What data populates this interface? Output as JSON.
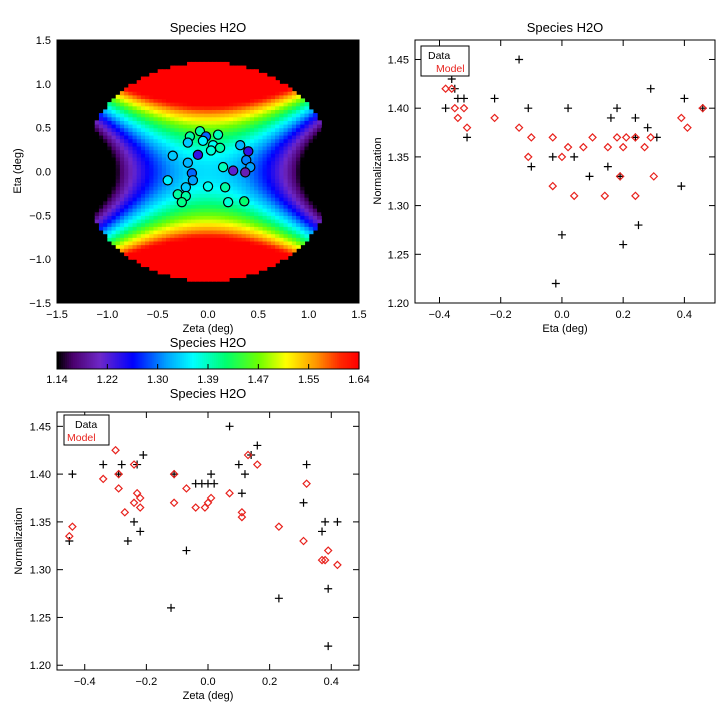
{
  "chart_data": [
    {
      "type": "heatmap",
      "title": "Species H2O",
      "xlabel": "Zeta (deg)",
      "ylabel": "Eta (deg)",
      "xlim": [
        -1.5,
        1.5
      ],
      "ylim": [
        -1.5,
        1.5
      ],
      "xticks": [
        -1.5,
        -1.0,
        -0.5,
        0.0,
        0.5,
        1.0,
        1.5
      ],
      "yticks": [
        -1.5,
        -1.0,
        -0.5,
        0.0,
        0.5,
        1.0,
        1.5
      ],
      "xtick_labels": [
        "−1.5",
        "−1.0",
        "−0.5",
        "0.0",
        "0.5",
        "1.0",
        "1.5"
      ],
      "ytick_labels": [
        "−1.5",
        "−1.0",
        "−0.5",
        "0.0",
        "0.5",
        "1.0",
        "1.5"
      ],
      "field": "normalization = 1.35 + 0.5*eta^2 - 0.25*zeta^2 inside circle of radius 1.25 deg",
      "points": [
        [
          -0.35,
          0.18,
          1.34
        ],
        [
          -0.18,
          0.4,
          1.4
        ],
        [
          -0.08,
          0.46,
          1.4
        ],
        [
          -0.02,
          0.4,
          1.3
        ],
        [
          0.1,
          0.42,
          1.39
        ],
        [
          -0.2,
          0.33,
          1.34
        ],
        [
          -0.05,
          0.35,
          1.36
        ],
        [
          0.05,
          0.3,
          1.37
        ],
        [
          0.03,
          0.24,
          1.38
        ],
        [
          -0.1,
          0.19,
          1.24
        ],
        [
          0.12,
          0.27,
          1.4
        ],
        [
          -0.2,
          0.1,
          1.33
        ],
        [
          -0.16,
          -0.02,
          1.3
        ],
        [
          0.15,
          0.05,
          1.39
        ],
        [
          0.25,
          0.01,
          1.22
        ],
        [
          0.32,
          0.3,
          1.33
        ],
        [
          0.4,
          0.23,
          1.24
        ],
        [
          0.38,
          0.13,
          1.31
        ],
        [
          0.42,
          0.05,
          1.32
        ],
        [
          0.37,
          -0.01,
          1.2
        ],
        [
          -0.4,
          -0.1,
          1.36
        ],
        [
          -0.15,
          -0.1,
          1.32
        ],
        [
          -0.22,
          -0.18,
          1.34
        ],
        [
          -0.3,
          -0.26,
          1.4
        ],
        [
          -0.22,
          -0.28,
          1.4
        ],
        [
          -0.26,
          -0.35,
          1.41
        ],
        [
          0.0,
          -0.17,
          1.37
        ],
        [
          0.17,
          -0.18,
          1.4
        ],
        [
          0.2,
          -0.35,
          1.38
        ],
        [
          0.36,
          -0.34,
          1.42
        ]
      ]
    },
    {
      "type": "scatter",
      "title": "Species H2O",
      "xlabel": "Eta (deg)",
      "ylabel": "Normalization",
      "xlim": [
        -0.48,
        0.5
      ],
      "ylim": [
        1.2,
        1.47
      ],
      "xticks": [
        -0.4,
        -0.2,
        0.0,
        0.2,
        0.4
      ],
      "yticks": [
        1.2,
        1.25,
        1.3,
        1.35,
        1.4,
        1.45
      ],
      "xtick_labels": [
        "−0.4",
        "−0.2",
        "0.0",
        "0.2",
        "0.4"
      ],
      "ytick_labels": [
        "1.20",
        "1.25",
        "1.30",
        "1.35",
        "1.40",
        "1.45"
      ],
      "legend": [
        "Data",
        "Model"
      ],
      "series": [
        {
          "name": "Data",
          "marker": "plus",
          "points": [
            [
              -0.38,
              1.4
            ],
            [
              -0.36,
              1.43
            ],
            [
              -0.35,
              1.42
            ],
            [
              -0.34,
              1.41
            ],
            [
              -0.32,
              1.41
            ],
            [
              -0.31,
              1.37
            ],
            [
              -0.22,
              1.41
            ],
            [
              -0.14,
              1.45
            ],
            [
              -0.11,
              1.4
            ],
            [
              -0.1,
              1.34
            ],
            [
              -0.03,
              1.35
            ],
            [
              -0.02,
              1.22
            ],
            [
              0.0,
              1.27
            ],
            [
              0.02,
              1.4
            ],
            [
              0.04,
              1.35
            ],
            [
              0.09,
              1.33
            ],
            [
              0.15,
              1.34
            ],
            [
              0.16,
              1.39
            ],
            [
              0.18,
              1.4
            ],
            [
              0.19,
              1.33
            ],
            [
              0.2,
              1.26
            ],
            [
              0.24,
              1.37
            ],
            [
              0.24,
              1.39
            ],
            [
              0.25,
              1.28
            ],
            [
              0.28,
              1.38
            ],
            [
              0.29,
              1.42
            ],
            [
              0.31,
              1.37
            ],
            [
              0.39,
              1.32
            ],
            [
              0.4,
              1.41
            ],
            [
              0.46,
              1.4
            ]
          ]
        },
        {
          "name": "Model",
          "marker": "diamond",
          "points": [
            [
              -0.38,
              1.42
            ],
            [
              -0.36,
              1.42
            ],
            [
              -0.35,
              1.4
            ],
            [
              -0.34,
              1.39
            ],
            [
              -0.32,
              1.4
            ],
            [
              -0.31,
              1.38
            ],
            [
              -0.22,
              1.39
            ],
            [
              -0.14,
              1.38
            ],
            [
              -0.11,
              1.35
            ],
            [
              -0.1,
              1.37
            ],
            [
              -0.03,
              1.37
            ],
            [
              -0.03,
              1.32
            ],
            [
              0.0,
              1.35
            ],
            [
              0.02,
              1.36
            ],
            [
              0.04,
              1.31
            ],
            [
              0.07,
              1.36
            ],
            [
              0.1,
              1.37
            ],
            [
              0.14,
              1.31
            ],
            [
              0.15,
              1.36
            ],
            [
              0.18,
              1.37
            ],
            [
              0.19,
              1.33
            ],
            [
              0.2,
              1.36
            ],
            [
              0.21,
              1.37
            ],
            [
              0.24,
              1.37
            ],
            [
              0.24,
              1.31
            ],
            [
              0.27,
              1.36
            ],
            [
              0.29,
              1.37
            ],
            [
              0.3,
              1.33
            ],
            [
              0.39,
              1.39
            ],
            [
              0.41,
              1.38
            ],
            [
              0.46,
              1.4
            ]
          ]
        }
      ]
    },
    {
      "type": "colorbar",
      "title": "Species H2O",
      "range": [
        1.14,
        1.64
      ],
      "tick_labels": [
        "1.14",
        "1.22",
        "1.30",
        "1.39",
        "1.47",
        "1.55",
        "1.64"
      ]
    },
    {
      "type": "scatter",
      "title": "Species H2O",
      "xlabel": "Zeta (deg)",
      "ylabel": "Normalization",
      "xlim": [
        -0.49,
        0.49
      ],
      "ylim": [
        1.195,
        1.465
      ],
      "xticks": [
        -0.4,
        -0.2,
        0.0,
        0.2,
        0.4
      ],
      "yticks": [
        1.2,
        1.25,
        1.3,
        1.35,
        1.4,
        1.45
      ],
      "xtick_labels": [
        "−0.4",
        "−0.2",
        "0.0",
        "0.2",
        "0.4"
      ],
      "ytick_labels": [
        "1.20",
        "1.25",
        "1.30",
        "1.35",
        "1.40",
        "1.45"
      ],
      "legend": [
        "Data",
        "Model"
      ],
      "series": [
        {
          "name": "Data",
          "marker": "plus",
          "points": [
            [
              -0.45,
              1.33
            ],
            [
              -0.44,
              1.4
            ],
            [
              -0.34,
              1.41
            ],
            [
              -0.29,
              1.4
            ],
            [
              -0.28,
              1.41
            ],
            [
              -0.26,
              1.33
            ],
            [
              -0.24,
              1.35
            ],
            [
              -0.23,
              1.41
            ],
            [
              -0.22,
              1.34
            ],
            [
              -0.21,
              1.42
            ],
            [
              -0.12,
              1.26
            ],
            [
              -0.11,
              1.4
            ],
            [
              -0.07,
              1.32
            ],
            [
              -0.04,
              1.39
            ],
            [
              -0.02,
              1.39
            ],
            [
              0.0,
              1.39
            ],
            [
              0.01,
              1.4
            ],
            [
              0.02,
              1.39
            ],
            [
              0.07,
              1.45
            ],
            [
              0.1,
              1.41
            ],
            [
              0.11,
              1.38
            ],
            [
              0.12,
              1.4
            ],
            [
              0.14,
              1.42
            ],
            [
              0.16,
              1.43
            ],
            [
              0.23,
              1.27
            ],
            [
              0.31,
              1.37
            ],
            [
              0.32,
              1.41
            ],
            [
              0.37,
              1.34
            ],
            [
              0.38,
              1.35
            ],
            [
              0.39,
              1.28
            ],
            [
              0.39,
              1.22
            ],
            [
              0.42,
              1.35
            ]
          ]
        },
        {
          "name": "Model",
          "marker": "diamond",
          "points": [
            [
              -0.45,
              1.335
            ],
            [
              -0.44,
              1.345
            ],
            [
              -0.34,
              1.395
            ],
            [
              -0.3,
              1.425
            ],
            [
              -0.29,
              1.4
            ],
            [
              -0.29,
              1.385
            ],
            [
              -0.27,
              1.36
            ],
            [
              -0.24,
              1.41
            ],
            [
              -0.24,
              1.37
            ],
            [
              -0.23,
              1.38
            ],
            [
              -0.22,
              1.375
            ],
            [
              -0.22,
              1.365
            ],
            [
              -0.11,
              1.37
            ],
            [
              -0.11,
              1.4
            ],
            [
              -0.07,
              1.385
            ],
            [
              -0.04,
              1.365
            ],
            [
              -0.01,
              1.365
            ],
            [
              0.0,
              1.37
            ],
            [
              0.01,
              1.375
            ],
            [
              0.07,
              1.38
            ],
            [
              0.11,
              1.36
            ],
            [
              0.11,
              1.355
            ],
            [
              0.13,
              1.42
            ],
            [
              0.16,
              1.41
            ],
            [
              0.23,
              1.345
            ],
            [
              0.31,
              1.33
            ],
            [
              0.32,
              1.39
            ],
            [
              0.37,
              1.31
            ],
            [
              0.38,
              1.31
            ],
            [
              0.39,
              1.32
            ],
            [
              0.42,
              1.305
            ]
          ]
        }
      ]
    }
  ]
}
